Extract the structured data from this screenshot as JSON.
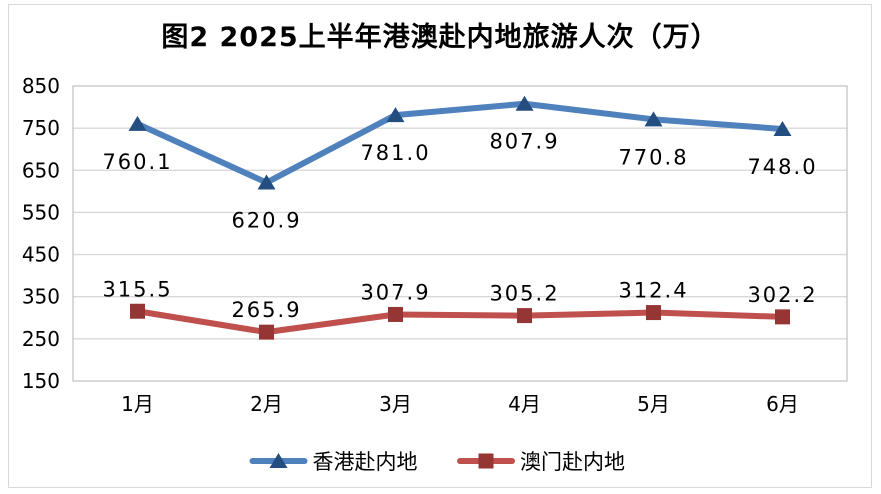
{
  "chart_data": {
    "type": "line",
    "title": "图2 2025上半年港澳赴内地旅游人次（万）",
    "categories": [
      "1月",
      "2月",
      "3月",
      "4月",
      "5月",
      "6月"
    ],
    "series": [
      {
        "name": "香港赴内地",
        "values": [
          760.1,
          620.9,
          781.0,
          807.9,
          770.8,
          748.0
        ],
        "labels": [
          "760.1",
          "620.9",
          "781.0",
          "807.9",
          "770.8",
          "748.0"
        ],
        "line_color": "#4F81BD",
        "marker_color": "#244E80",
        "marker": "triangle",
        "label_position": "below"
      },
      {
        "name": "澳门赴内地",
        "values": [
          315.5,
          265.9,
          307.9,
          305.2,
          312.4,
          302.2
        ],
        "labels": [
          "315.5",
          "265.9",
          "307.9",
          "305.2",
          "312.4",
          "302.2"
        ],
        "line_color": "#C0504D",
        "marker_color": "#963634",
        "marker": "square",
        "label_position": "above"
      }
    ],
    "y_axis": {
      "min": 150,
      "max": 850,
      "step": 100,
      "tick_labels": [
        "850",
        "750",
        "650",
        "550",
        "450",
        "350",
        "250",
        "150"
      ]
    },
    "xlabel": "",
    "ylabel": "",
    "grid": "horizontal",
    "legend_position": "bottom",
    "colors": {
      "gridline": "#d9d9d9",
      "plot_border": "#c9c9c9",
      "frame_border": "#d9d9d9",
      "text": "#000000",
      "background": "#ffffff"
    }
  }
}
